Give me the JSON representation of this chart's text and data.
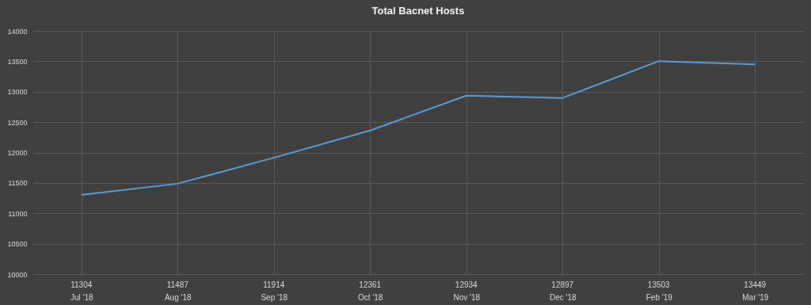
{
  "chart_data": {
    "type": "line",
    "title": "Total Bacnet Hosts",
    "categories": [
      "Jul '18",
      "Aug '18",
      "Sep '18",
      "Oct '18",
      "Nov '18",
      "Dec '18",
      "Feb '19",
      "Mar '19"
    ],
    "series": [
      {
        "color": "#5b9bd5",
        "values": [
          11304,
          11487,
          11914,
          12361,
          12934,
          12897,
          13503,
          13449
        ]
      }
    ],
    "ylim": [
      10000,
      14000
    ],
    "yticks": [
      10000,
      10500,
      11000,
      11500,
      12000,
      12500,
      13000,
      13500,
      14000
    ],
    "grid": true,
    "data_labels": true,
    "legend": false,
    "marker": "none",
    "line_style": "solid"
  }
}
